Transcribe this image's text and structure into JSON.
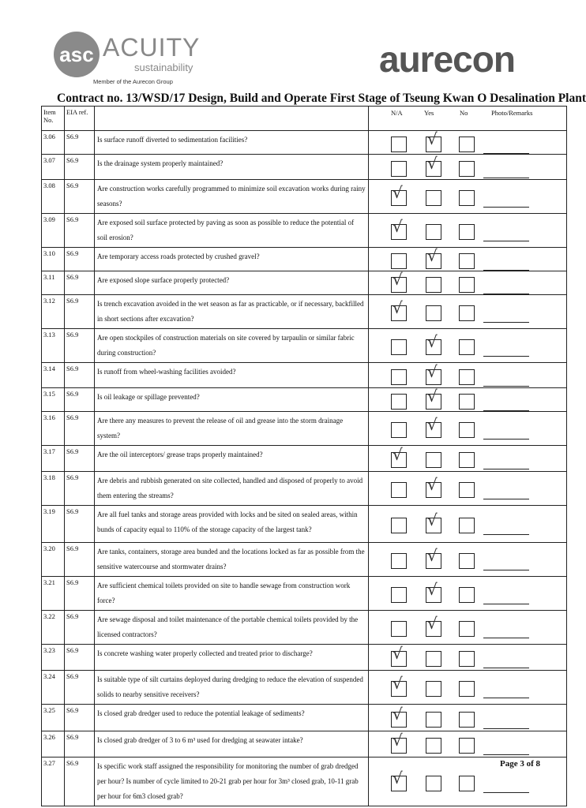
{
  "header": {
    "left_logo": {
      "mark": "asc",
      "name": "ACUITY",
      "sub": "sustainability",
      "member": "Member of the Aurecon Group"
    },
    "right_logo": "aurecon"
  },
  "title": "Contract no.  13/WSD/17 Design, Build and Operate First Stage of Tseung Kwan O Desalination Plant",
  "columns": {
    "item": "Item No.",
    "eia": "EIA ref.",
    "na": "N/A",
    "yes": "Yes",
    "no": "No",
    "remarks": "Photo/Remarks"
  },
  "rows": [
    {
      "item": "3.06",
      "eia": "S6.9",
      "q": "Is surface runoff diverted to sedimentation facilities?",
      "checked": "yes"
    },
    {
      "item": "3.07",
      "eia": "S6.9",
      "q": "Is the drainage system properly maintained?",
      "checked": "yes"
    },
    {
      "item": "3.08",
      "eia": "S6.9",
      "q": "Are construction works carefully programmed to minimize soil excavation works during rainy seasons?",
      "checked": "na"
    },
    {
      "item": "3.09",
      "eia": "S6.9",
      "q": "Are exposed soil surface protected by paving as soon as possible to reduce the potential of soil erosion?",
      "checked": "na"
    },
    {
      "item": "3.10",
      "eia": "S6.9",
      "q": "Are temporary access roads protected by crushed gravel?",
      "checked": "yes"
    },
    {
      "item": "3.11",
      "eia": "S6.9",
      "q": "Are exposed slope surface properly protected?",
      "checked": "na"
    },
    {
      "item": "3.12",
      "eia": "S6.9",
      "q": "Is trench excavation avoided in the wet season as far as practicable, or if necessary, backfilled in short sections after excavation?",
      "checked": "na"
    },
    {
      "item": "3.13",
      "eia": "S6.9",
      "q": "Are open stockpiles of construction materials on site covered by tarpaulin or similar fabric during construction?",
      "checked": "yes"
    },
    {
      "item": "3.14",
      "eia": "S6.9",
      "q": "Is runoff from wheel-washing facilities avoided?",
      "checked": "yes"
    },
    {
      "item": "3.15",
      "eia": "S6.9",
      "q": "Is oil leakage or spillage prevented?",
      "checked": "yes"
    },
    {
      "item": "3.16",
      "eia": "S6.9",
      "q": "Are there any measures to prevent the release of oil and grease into the storm drainage system?",
      "checked": "yes"
    },
    {
      "item": "3.17",
      "eia": "S6.9",
      "q": "Are the oil interceptors/ grease traps properly maintained?",
      "checked": "na"
    },
    {
      "item": "3.18",
      "eia": "S6.9",
      "q": "Are debris and rubbish generated on site collected, handled and disposed of properly to avoid them entering the streams?",
      "checked": "yes"
    },
    {
      "item": "3.19",
      "eia": "S6.9",
      "q": "Are all fuel tanks and storage areas provided with locks and be sited on sealed areas, within bunds of capacity equal to 110% of the storage capacity of the largest tank?",
      "checked": "yes"
    },
    {
      "item": "3.20",
      "eia": "S6.9",
      "q": "Are tanks, containers, storage area bunded and the locations locked as far as possible from the sensitive watercourse and stormwater drains?",
      "checked": "yes"
    },
    {
      "item": "3.21",
      "eia": "S6.9",
      "q": "Are sufficient chemical toilets provided on site to handle sewage from construction work force?",
      "checked": "yes"
    },
    {
      "item": "3.22",
      "eia": "S6.9",
      "q": "Are sewage disposal and toilet maintenance of the portable chemical toilets provided by the licensed contractors?",
      "checked": "yes"
    },
    {
      "item": "3.23",
      "eia": "S6.9",
      "q": "Is concrete washing water properly collected and treated prior to discharge?",
      "checked": "na"
    },
    {
      "item": "3.24",
      "eia": "S6.9",
      "q": "Is suitable type of silt curtains deployed during dredging to reduce the elevation of suspended solids to nearby sensitive receivers?",
      "checked": "na"
    },
    {
      "item": "3.25",
      "eia": "S6.9",
      "q": "Is closed grab dredger used to reduce the potential leakage of sediments?",
      "checked": "na"
    },
    {
      "item": "3.26",
      "eia": "S6.9",
      "q": "Is closed grab dredger of 3 to 6 m³ used for dredging at seawater intake?",
      "checked": "na"
    },
    {
      "item": "3.27",
      "eia": "S6.9",
      "q": "Is specific work staff assigned the responsibility for monitoring the number of grab dredged per hour? Is number of cycle limited to 20-21 grab per hour for 3m³ closed grab, 10-11 grab per hour for 6m3 closed grab?",
      "checked": "na"
    }
  ],
  "tick_glyph": "√",
  "footer": "Page 3 of 8"
}
